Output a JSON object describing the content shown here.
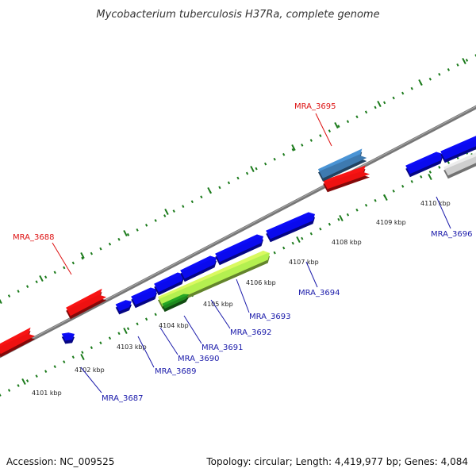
{
  "title": "Mycobacterium tuberculosis H37Ra, complete genome",
  "footer": {
    "accession": "Accession: NC_009525",
    "info": "Topology: circular; Length: 4,419,977 bp; Genes: 4,084"
  },
  "colors": {
    "forward_gene": "#0a0aee",
    "reverse_gene": "#ee1111",
    "selected_gene": "#3e7ab0",
    "rna_gene": "#b4f050",
    "dark_gene": "#1e8a1e",
    "other_gene": "#cfcfcf",
    "backbone": "#777777",
    "tick": "#1a7a1a",
    "label_forward": "#1a1aaa",
    "label_reverse": "#dd1111"
  },
  "tick_labels": [
    "4101 kbp",
    "4102 kbp",
    "4103 kbp",
    "4104 kbp",
    "4105 kbp",
    "4106 kbp",
    "4107 kbp",
    "4108 kbp",
    "4109 kbp",
    "4110 kbp"
  ],
  "gene_labels": [
    {
      "name": "MRA_3687",
      "strand": "forward"
    },
    {
      "name": "MRA_3688",
      "strand": "reverse"
    },
    {
      "name": "MRA_3689",
      "strand": "forward"
    },
    {
      "name": "MRA_3690",
      "strand": "forward"
    },
    {
      "name": "MRA_3691",
      "strand": "forward"
    },
    {
      "name": "MRA_3692",
      "strand": "forward"
    },
    {
      "name": "MRA_3693",
      "strand": "forward"
    },
    {
      "name": "MRA_3694",
      "strand": "forward"
    },
    {
      "name": "MRA_3695",
      "strand": "reverse"
    },
    {
      "name": "MRA_3696",
      "strand": "forward"
    }
  ]
}
